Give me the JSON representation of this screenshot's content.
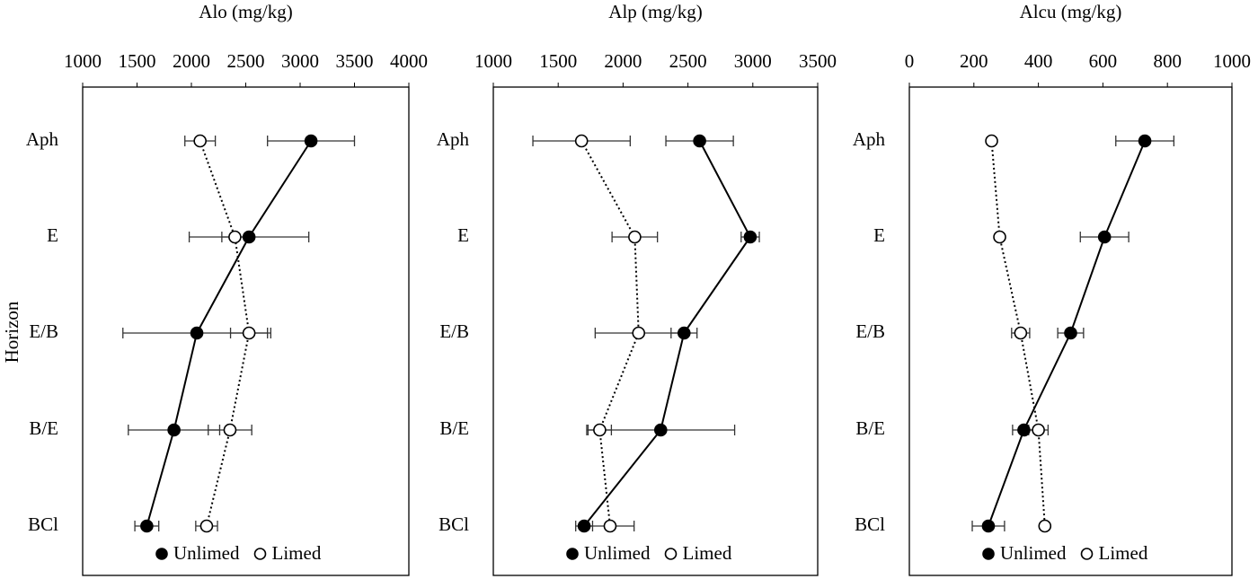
{
  "chart_data": [
    {
      "type": "line",
      "xlabel": "Alo (mg/kg)",
      "ylabel": "Horizon",
      "categories": [
        "Aph",
        "E",
        "E/B",
        "B/E",
        "BCl"
      ],
      "xlim": [
        1000,
        4000
      ],
      "xticks": [
        1000,
        1500,
        2000,
        2500,
        3000,
        3500,
        4000
      ],
      "series": [
        {
          "name": "Unlimed",
          "color": "#000000",
          "fill": "#000000",
          "dash": "solid",
          "values": [
            3100,
            2530,
            2050,
            1840,
            1590
          ],
          "errors": [
            400,
            550,
            680,
            420,
            110
          ]
        },
        {
          "name": "Limed",
          "color": "#000000",
          "fill": "#ffffff",
          "dash": "dotted",
          "values": [
            2080,
            2400,
            2530,
            2355,
            2140
          ],
          "errors": [
            140,
            120,
            170,
            200,
            100
          ]
        }
      ]
    },
    {
      "type": "line",
      "xlabel": "Alp (mg/kg)",
      "categories": [
        "Aph",
        "E",
        "E/B",
        "B/E",
        "BCl"
      ],
      "xlim": [
        1000,
        3500
      ],
      "xticks": [
        1000,
        1500,
        2000,
        2500,
        3000,
        3500
      ],
      "series": [
        {
          "name": "Unlimed",
          "color": "#000000",
          "fill": "#000000",
          "dash": "solid",
          "values": [
            2590,
            2980,
            2470,
            2290,
            1700
          ],
          "errors": [
            260,
            70,
            100,
            570,
            65
          ]
        },
        {
          "name": "Limed",
          "color": "#000000",
          "fill": "#ffffff",
          "dash": "dotted",
          "values": [
            1680,
            2090,
            2120,
            1820,
            1900
          ],
          "errors": [
            375,
            175,
            335,
            90,
            185
          ]
        }
      ]
    },
    {
      "type": "line",
      "xlabel": "Alcu (mg/kg)",
      "categories": [
        "Aph",
        "E",
        "E/B",
        "B/E",
        "BCl"
      ],
      "xlim": [
        0,
        1000
      ],
      "xticks": [
        0,
        200,
        400,
        600,
        800,
        1000
      ],
      "series": [
        {
          "name": "Unlimed",
          "color": "#000000",
          "fill": "#000000",
          "dash": "solid",
          "values": [
            730,
            605,
            500,
            355,
            245
          ],
          "errors": [
            90,
            75,
            40,
            35,
            50
          ]
        },
        {
          "name": "Limed",
          "color": "#000000",
          "fill": "#ffffff",
          "dash": "dotted",
          "values": [
            255,
            280,
            345,
            400,
            420
          ],
          "errors": [
            5,
            5,
            28,
            30,
            10
          ]
        }
      ]
    }
  ]
}
